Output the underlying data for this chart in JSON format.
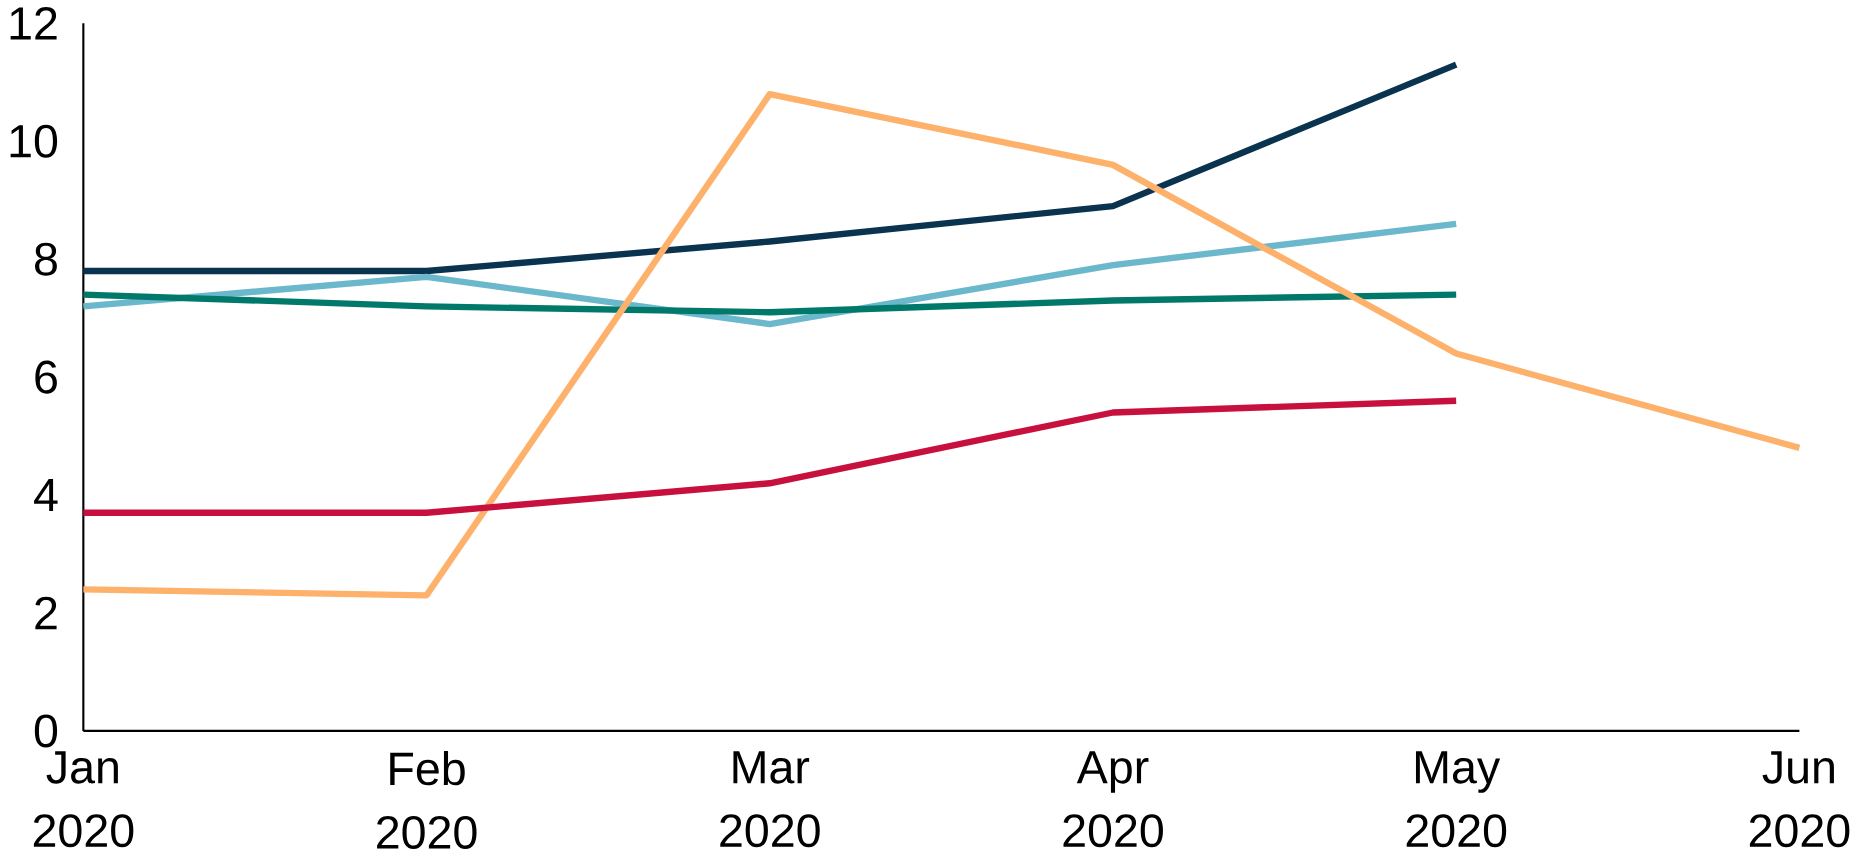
{
  "chart_data": {
    "type": "line",
    "categories": [
      "Jan 2020",
      "Feb 2020",
      "Mar 2020",
      "Apr 2020",
      "May 2020",
      "Jun 2020"
    ],
    "series": [
      {
        "color": "#0a3350",
        "values": [
          7.8,
          7.8,
          8.3,
          8.9,
          11.3,
          null
        ]
      },
      {
        "color": "#6bb8cc",
        "values": [
          7.2,
          7.7,
          6.9,
          7.9,
          8.6,
          null
        ]
      },
      {
        "color": "#00796b",
        "values": [
          7.4,
          7.2,
          7.1,
          7.3,
          7.4,
          null
        ]
      },
      {
        "color": "#fdb16b",
        "values": [
          2.4,
          2.3,
          10.8,
          9.6,
          6.4,
          4.8
        ]
      },
      {
        "color": "#c8103e",
        "values": [
          3.7,
          3.7,
          4.2,
          5.4,
          5.6,
          null
        ]
      }
    ],
    "ylim": [
      0,
      12
    ],
    "yticks": [
      0,
      2,
      4,
      6,
      8,
      10,
      12
    ],
    "marker": "none",
    "line_style": "solid"
  }
}
